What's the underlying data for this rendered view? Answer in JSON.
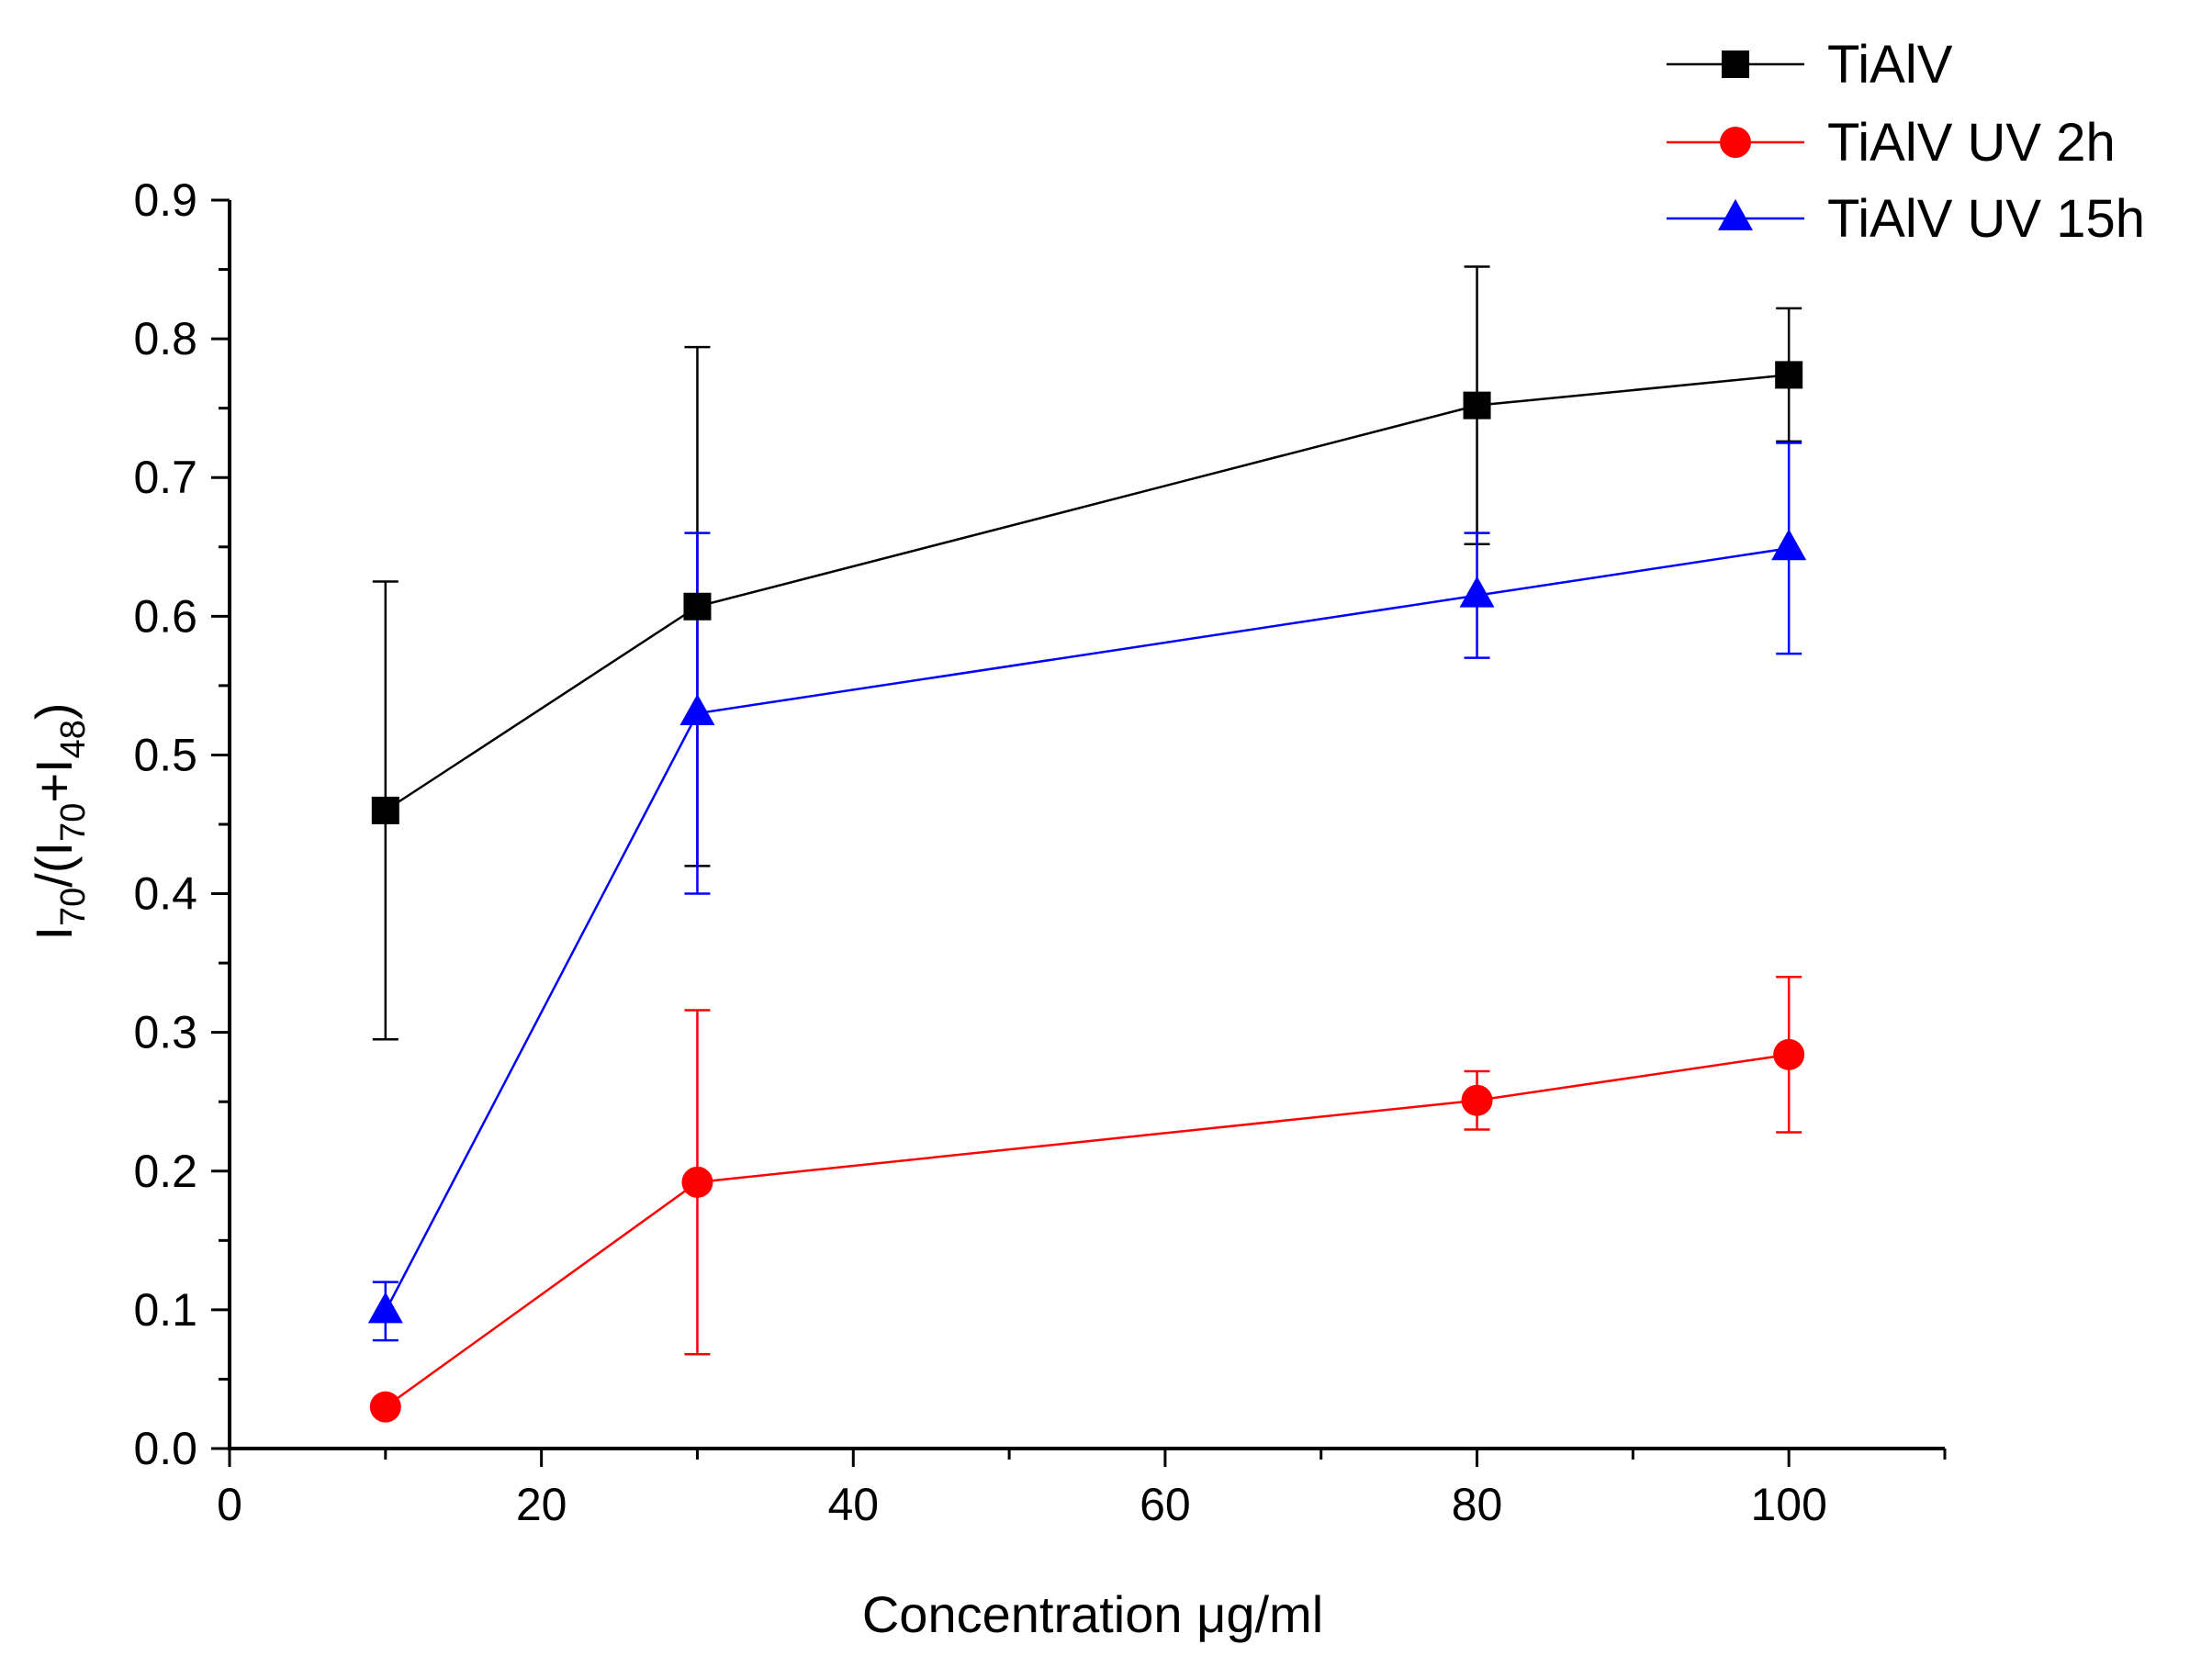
{
  "chart_data": {
    "type": "line",
    "title": "",
    "xlabel": "Concentration μg/ml",
    "ylabel": "I70/(I70+I48)",
    "ylabel_parts": {
      "i1": "I",
      "s1": "70",
      "mid": "/(I",
      "s2": "70",
      "plus": "+I",
      "s3": "48",
      "end": ")"
    },
    "xlim": [
      0,
      110
    ],
    "ylim": [
      0,
      0.9
    ],
    "x_ticks": [
      0,
      20,
      40,
      60,
      80,
      100
    ],
    "y_ticks": [
      0.0,
      0.1,
      0.2,
      0.3,
      0.4,
      0.5,
      0.6,
      0.7,
      0.8,
      0.9
    ],
    "x_tick_labels": [
      "0",
      "20",
      "40",
      "60",
      "80",
      "100"
    ],
    "y_tick_labels": [
      "0.0",
      "0.1",
      "0.2",
      "0.3",
      "0.4",
      "0.5",
      "0.6",
      "0.7",
      "0.8",
      "0.9"
    ],
    "grid": false,
    "legend_position": "top-right",
    "series": [
      {
        "name": "TiAlV",
        "color": "#000000",
        "marker": "square",
        "x": [
          10,
          30,
          80,
          100
        ],
        "y": [
          0.46,
          0.607,
          0.752,
          0.774
        ],
        "err": [
          0.165,
          0.187,
          0.1,
          0.048
        ]
      },
      {
        "name": "TiAlV UV 2h",
        "color": "#ff0000",
        "marker": "circle",
        "x": [
          10,
          30,
          80,
          100
        ],
        "y": [
          0.03,
          0.192,
          0.251,
          0.284
        ],
        "err": [
          0.0,
          0.124,
          0.021,
          0.056
        ]
      },
      {
        "name": "TiAlV UV 15h",
        "color": "#0000ff",
        "marker": "triangle",
        "x": [
          10,
          30,
          80,
          100
        ],
        "y": [
          0.099,
          0.53,
          0.615,
          0.649
        ],
        "err": [
          0.021,
          0.13,
          0.045,
          0.076
        ]
      }
    ]
  }
}
